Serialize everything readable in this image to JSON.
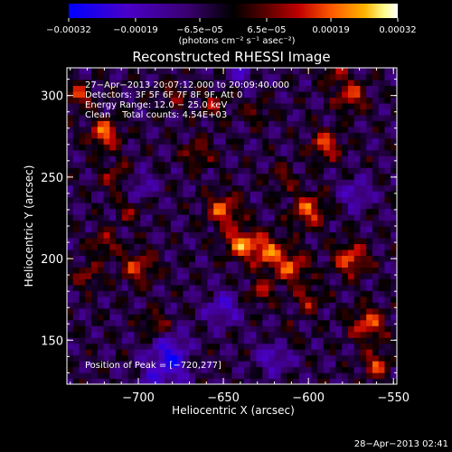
{
  "chart_data": {
    "type": "heatmap",
    "title": "Reconstructed RHESSI Image",
    "colorbar": {
      "tick_labels": [
        "−0.00032",
        "−0.00019",
        "−6.5e−05",
        "6.5e−05",
        "0.00019",
        "0.00032"
      ],
      "tick_values": [
        -0.00032,
        -0.00019,
        -6.5e-05,
        6.5e-05,
        0.00019,
        0.00032
      ],
      "range": [
        -0.00032,
        0.00032
      ],
      "unit_label": "(photons cm⁻² s⁻¹ asec⁻²)",
      "colormap": [
        "#0000ff",
        "#4a00c8",
        "#3a0070",
        "#000000",
        "#5a0000",
        "#c00000",
        "#ff5a00",
        "#ffb400",
        "#ffff90",
        "#ffffff"
      ]
    },
    "xlabel": "Heliocentric X (arcsec)",
    "ylabel": "Heliocentric Y (arcsec)",
    "xlim": [
      -742,
      -548
    ],
    "ylim": [
      123,
      317
    ],
    "x_ticks": [
      -700,
      -650,
      -600,
      -550
    ],
    "x_tick_labels": [
      "−700",
      "−650",
      "−600",
      "−550"
    ],
    "y_ticks": [
      150,
      200,
      250,
      300
    ],
    "y_tick_labels": [
      "150",
      "200",
      "250",
      "300"
    ],
    "annotations": [
      "27−Apr−2013 20:07:12.000 to 20:09:40.000",
      "Detectors: 3F 5F 6F 7F 8F 9F, Att 0",
      "Energy Range: 12.0 − 25.0 keV",
      "Clean    Total counts: 4.54E+03"
    ],
    "peak_label": "Position of Peak = [−720,277]",
    "peak_position": [
      -720,
      277
    ],
    "grid": false,
    "legend": "none"
  },
  "footer": {
    "timestamp": "28−Apr−2013 02:41"
  }
}
